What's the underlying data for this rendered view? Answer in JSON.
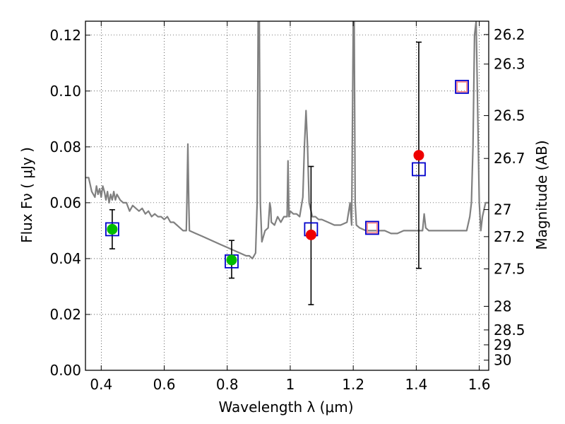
{
  "chart_data": {
    "type": "scatter",
    "xlabel": "Wavelength  λ (μm)",
    "ylabel": "Flux  Fν ( μJy )",
    "ylabel2": "Magnitude (AB)",
    "xlim": [
      0.35,
      1.63
    ],
    "ylim": [
      0.0,
      0.125
    ],
    "grid": true,
    "x_ticks": [
      0.4,
      0.6,
      0.8,
      1.0,
      1.2,
      1.4,
      1.6
    ],
    "x_tick_labels": [
      "0.4",
      "0.6",
      "0.8",
      "1",
      "1.2",
      "1.4",
      "1.6"
    ],
    "y_ticks": [
      0.0,
      0.02,
      0.04,
      0.06,
      0.08,
      0.1,
      0.12
    ],
    "y_tick_labels": [
      "0.00",
      "0.02",
      "0.04",
      "0.06",
      "0.08",
      "0.10",
      "0.12"
    ],
    "mag_ticks": [
      26.2,
      26.3,
      26.5,
      26.7,
      27,
      27.2,
      27.5,
      28,
      28.5,
      29,
      30
    ],
    "mag_tick_labels": [
      "26.2",
      "26.3",
      "26.5",
      "26.7",
      "27",
      "27.2",
      "27.5",
      "28",
      "28.5",
      "29",
      "30"
    ],
    "series": [
      {
        "marker": "circle",
        "color": "#00bb00",
        "points": [
          {
            "x": 0.435,
            "y": 0.0505,
            "yerr_low": 0.0435,
            "yerr_high": 0.0575
          },
          {
            "x": 0.814,
            "y": 0.0395,
            "yerr_low": 0.033,
            "yerr_high": 0.0465
          }
        ]
      },
      {
        "marker": "circle",
        "color": "#ee0000",
        "points": [
          {
            "x": 1.066,
            "y": 0.0485,
            "yerr_low": 0.0235,
            "yerr_high": 0.073
          },
          {
            "x": 1.408,
            "y": 0.077,
            "yerr_low": 0.0365,
            "yerr_high": 0.1175
          }
        ]
      },
      {
        "marker": "open-square",
        "color": "#ff8888",
        "points": [
          {
            "x": 1.26,
            "y": 0.051
          },
          {
            "x": 1.545,
            "y": 0.1015
          }
        ]
      },
      {
        "marker": "open-square",
        "color": "#0000cc",
        "points": [
          {
            "x": 0.435,
            "y": 0.0505
          },
          {
            "x": 0.814,
            "y": 0.039
          },
          {
            "x": 1.066,
            "y": 0.0505
          },
          {
            "x": 1.26,
            "y": 0.051
          },
          {
            "x": 1.408,
            "y": 0.072
          },
          {
            "x": 1.545,
            "y": 0.1015
          }
        ]
      },
      {
        "marker": "line",
        "color": "#808080",
        "x": [
          0.35,
          0.36,
          0.37,
          0.38,
          0.385,
          0.39,
          0.395,
          0.4,
          0.405,
          0.41,
          0.415,
          0.42,
          0.425,
          0.43,
          0.435,
          0.44,
          0.445,
          0.45,
          0.46,
          0.47,
          0.48,
          0.49,
          0.5,
          0.51,
          0.52,
          0.53,
          0.54,
          0.55,
          0.56,
          0.57,
          0.58,
          0.59,
          0.6,
          0.61,
          0.62,
          0.63,
          0.64,
          0.65,
          0.66,
          0.67,
          0.672,
          0.675,
          0.678,
          0.68,
          0.7,
          0.72,
          0.74,
          0.76,
          0.78,
          0.8,
          0.82,
          0.84,
          0.86,
          0.87,
          0.88,
          0.89,
          0.895,
          0.898,
          0.9,
          0.902,
          0.905,
          0.91,
          0.92,
          0.93,
          0.935,
          0.938,
          0.94,
          0.95,
          0.96,
          0.97,
          0.98,
          0.99,
          0.993,
          0.996,
          1.0,
          1.01,
          1.02,
          1.03,
          1.04,
          1.045,
          1.05,
          1.055,
          1.06,
          1.07,
          1.08,
          1.09,
          1.1,
          1.12,
          1.14,
          1.16,
          1.18,
          1.19,
          1.195,
          1.2,
          1.203,
          1.206,
          1.21,
          1.22,
          1.24,
          1.26,
          1.28,
          1.3,
          1.32,
          1.34,
          1.36,
          1.38,
          1.4,
          1.42,
          1.425,
          1.43,
          1.44,
          1.46,
          1.48,
          1.5,
          1.52,
          1.54,
          1.55,
          1.56,
          1.57,
          1.575,
          1.58,
          1.585,
          1.59,
          1.6,
          1.605,
          1.61,
          1.62,
          1.63
        ],
        "y": [
          0.069,
          0.069,
          0.064,
          0.062,
          0.066,
          0.063,
          0.065,
          0.062,
          0.066,
          0.064,
          0.061,
          0.064,
          0.06,
          0.063,
          0.061,
          0.064,
          0.061,
          0.063,
          0.061,
          0.06,
          0.06,
          0.057,
          0.059,
          0.058,
          0.057,
          0.058,
          0.056,
          0.057,
          0.055,
          0.056,
          0.055,
          0.055,
          0.054,
          0.055,
          0.053,
          0.053,
          0.052,
          0.051,
          0.05,
          0.05,
          0.06,
          0.081,
          0.06,
          0.05,
          0.049,
          0.048,
          0.047,
          0.046,
          0.045,
          0.044,
          0.043,
          0.042,
          0.041,
          0.041,
          0.04,
          0.042,
          0.06,
          0.125,
          0.125,
          0.125,
          0.06,
          0.046,
          0.05,
          0.051,
          0.06,
          0.058,
          0.053,
          0.052,
          0.055,
          0.053,
          0.055,
          0.055,
          0.075,
          0.055,
          0.057,
          0.056,
          0.056,
          0.055,
          0.062,
          0.08,
          0.093,
          0.08,
          0.06,
          0.055,
          0.055,
          0.054,
          0.054,
          0.053,
          0.052,
          0.052,
          0.053,
          0.06,
          0.052,
          0.125,
          0.125,
          0.06,
          0.052,
          0.051,
          0.05,
          0.05,
          0.05,
          0.05,
          0.049,
          0.049,
          0.05,
          0.05,
          0.05,
          0.05,
          0.056,
          0.051,
          0.05,
          0.05,
          0.05,
          0.05,
          0.05,
          0.05,
          0.05,
          0.05,
          0.055,
          0.06,
          0.08,
          0.12,
          0.125,
          0.06,
          0.05,
          0.055,
          0.06,
          0.06
        ]
      }
    ]
  }
}
